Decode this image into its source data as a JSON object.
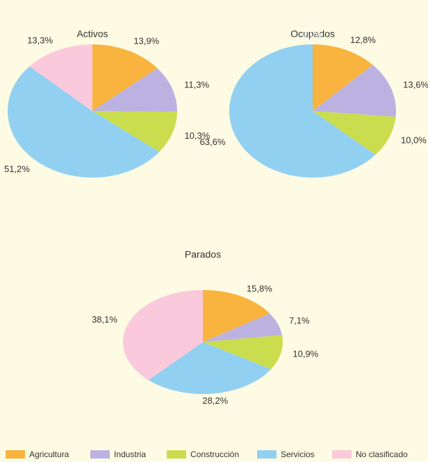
{
  "chart_data": [
    {
      "type": "pie",
      "title": "Activos",
      "categories": [
        "Agricultura",
        "Industria",
        "Construcción",
        "Servicios",
        "No clasificado"
      ],
      "colors": [
        "#f8b43e",
        "#bcb2e2",
        "#cadd4e",
        "#92d0f1",
        "#fac9dc"
      ],
      "values": [
        13.9,
        11.3,
        10.3,
        51.2,
        13.3
      ],
      "value_labels": [
        "13,9%",
        "11,3%",
        "10,3%",
        "51,2%",
        "13,3%"
      ]
    },
    {
      "type": "pie",
      "title": "Ocupados",
      "categories": [
        "Agricultura",
        "Industria",
        "Construcción",
        "Servicios",
        "No clasificado"
      ],
      "colors": [
        "#f8b43e",
        "#bcb2e2",
        "#cadd4e",
        "#92d0f1",
        "#fac9dc"
      ],
      "values": [
        12.8,
        13.6,
        10.0,
        63.6,
        0.0
      ],
      "value_labels": [
        "12,8%",
        "13,6%",
        "10,0%",
        "63,6%",
        "0,0%"
      ]
    },
    {
      "type": "pie",
      "title": "Parados",
      "categories": [
        "Agricultura",
        "Industria",
        "Construcción",
        "Servicios",
        "No clasificado"
      ],
      "colors": [
        "#f8b43e",
        "#bcb2e2",
        "#cadd4e",
        "#92d0f1",
        "#fac9dc"
      ],
      "values": [
        15.8,
        7.1,
        10.9,
        28.2,
        38.1
      ],
      "value_labels": [
        "15,8%",
        "7,1%",
        "10,9%",
        "28,2%",
        "38,1%"
      ]
    }
  ]
}
